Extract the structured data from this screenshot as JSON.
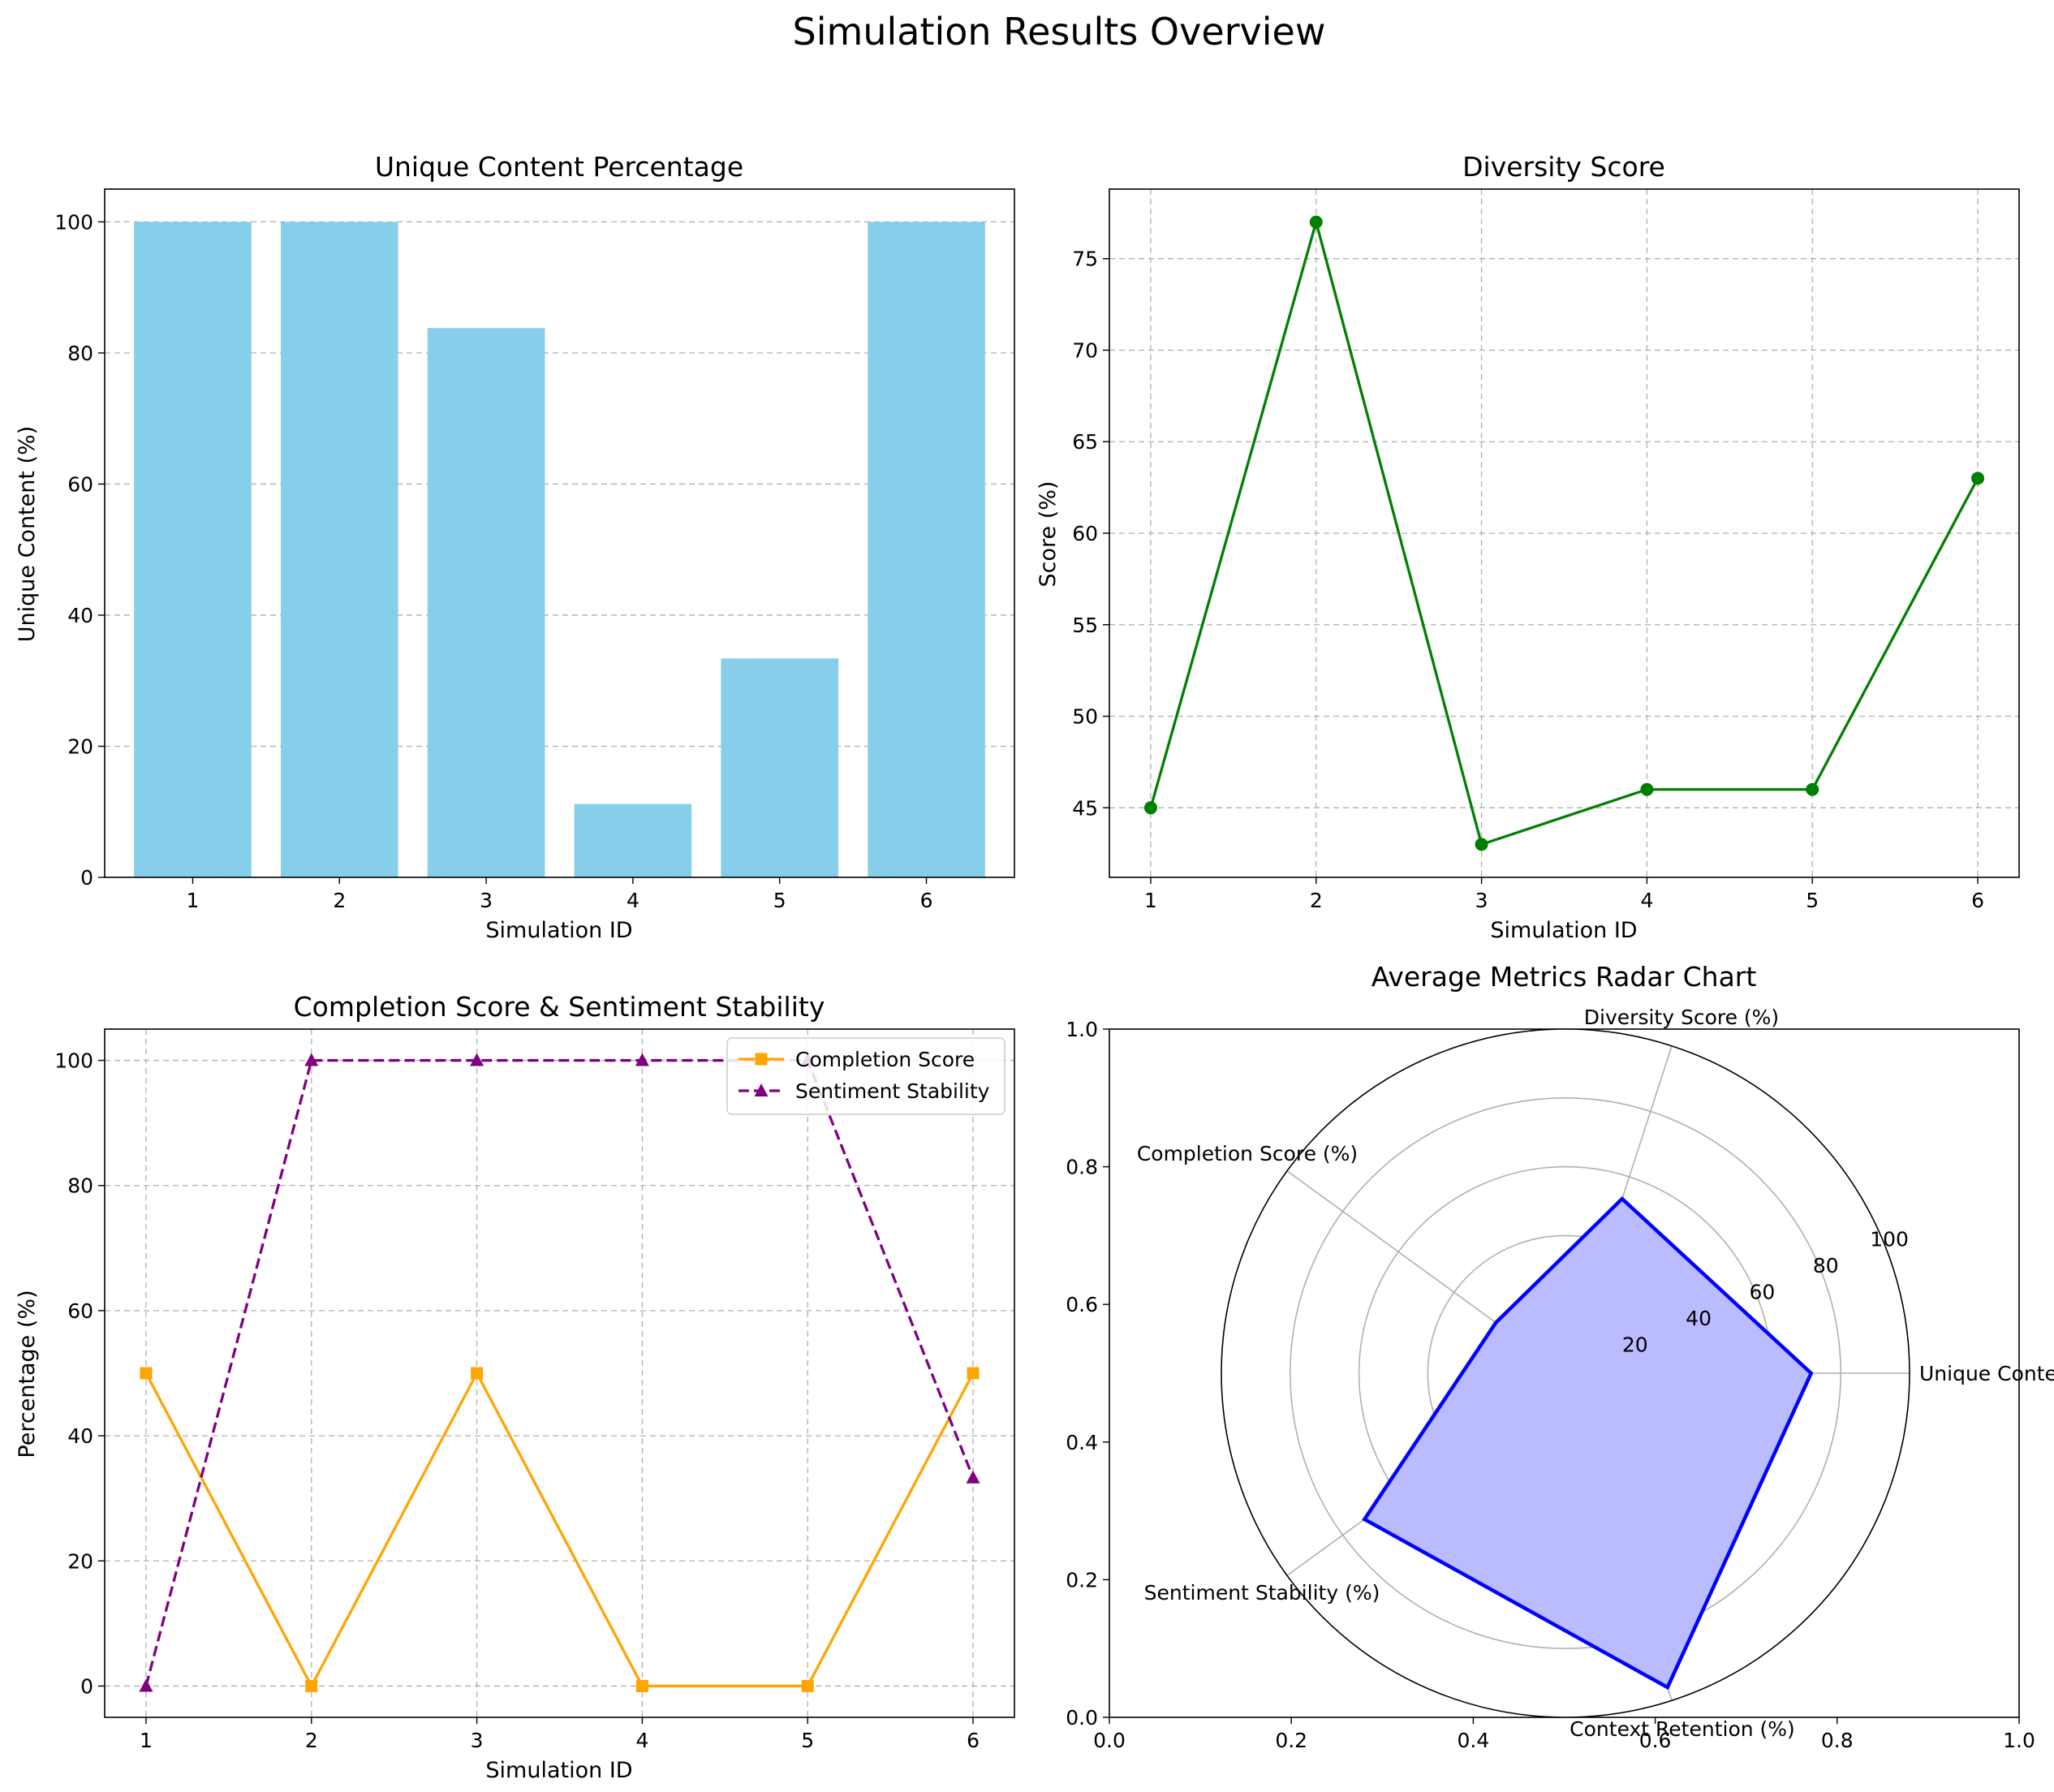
{
  "figure": {
    "title": "Simulation Results Overview"
  },
  "colors": {
    "bar": "#87CEEB",
    "diversity": "#008000",
    "completion": "#FFA500",
    "sentiment": "#800080",
    "radar_line": "#0000FF",
    "radar_fill": "#BBBBFF",
    "grid": "#b0b0b0"
  },
  "chart_data": [
    {
      "type": "bar",
      "title": "Unique Content Percentage",
      "xlabel": "Simulation ID",
      "ylabel": "Unique Content (%)",
      "categories": [
        "1",
        "2",
        "3",
        "4",
        "5",
        "6"
      ],
      "values": [
        100,
        100,
        83.8,
        11.2,
        33.4,
        100
      ],
      "ylim": [
        0,
        105
      ],
      "yticks": [
        0,
        20,
        40,
        60,
        80,
        100
      ],
      "grid": "y-dashed"
    },
    {
      "type": "line",
      "title": "Diversity Score",
      "xlabel": "Simulation ID",
      "ylabel": "Score (%)",
      "x": [
        1,
        2,
        3,
        4,
        5,
        6
      ],
      "values": [
        45,
        77,
        43,
        46,
        46,
        63
      ],
      "xlim": [
        0.75,
        6.25
      ],
      "ylim": [
        41.2,
        78.8
      ],
      "yticks": [
        45,
        50,
        55,
        60,
        65,
        70,
        75
      ],
      "marker": "circle",
      "grid": "both-dashed"
    },
    {
      "type": "line",
      "title": "Completion Score & Sentiment Stability",
      "xlabel": "Simulation ID",
      "ylabel": "Percentage (%)",
      "x": [
        1,
        2,
        3,
        4,
        5,
        6
      ],
      "xlim": [
        0.75,
        6.25
      ],
      "ylim": [
        -5,
        105
      ],
      "yticks": [
        0,
        20,
        40,
        60,
        80,
        100
      ],
      "legend": "top-right",
      "grid": "both-dashed",
      "series": [
        {
          "name": "Completion Score",
          "values": [
            50,
            0,
            50,
            0,
            0,
            50
          ],
          "marker": "square",
          "style": "solid"
        },
        {
          "name": "Sentiment Stability",
          "values": [
            0,
            100,
            100,
            100,
            100,
            33.3
          ],
          "marker": "triangle",
          "style": "dashed"
        }
      ]
    },
    {
      "type": "radar",
      "title": "Average Metrics Radar Chart",
      "categories": [
        "Unique Content (%)",
        "Diversity Score (%)",
        "Completion Score (%)",
        "Sentiment Stability (%)",
        "Context Retention (%)"
      ],
      "values": [
        71.4,
        53.3,
        25,
        72.2,
        96
      ],
      "rmax": 100,
      "rticks": [
        20,
        40,
        60,
        80,
        100
      ],
      "background_axes": {
        "xlim": [
          0,
          1
        ],
        "ylim": [
          0,
          1
        ],
        "ticks": [
          "0.0",
          "0.2",
          "0.4",
          "0.6",
          "0.8",
          "1.0"
        ]
      }
    }
  ]
}
